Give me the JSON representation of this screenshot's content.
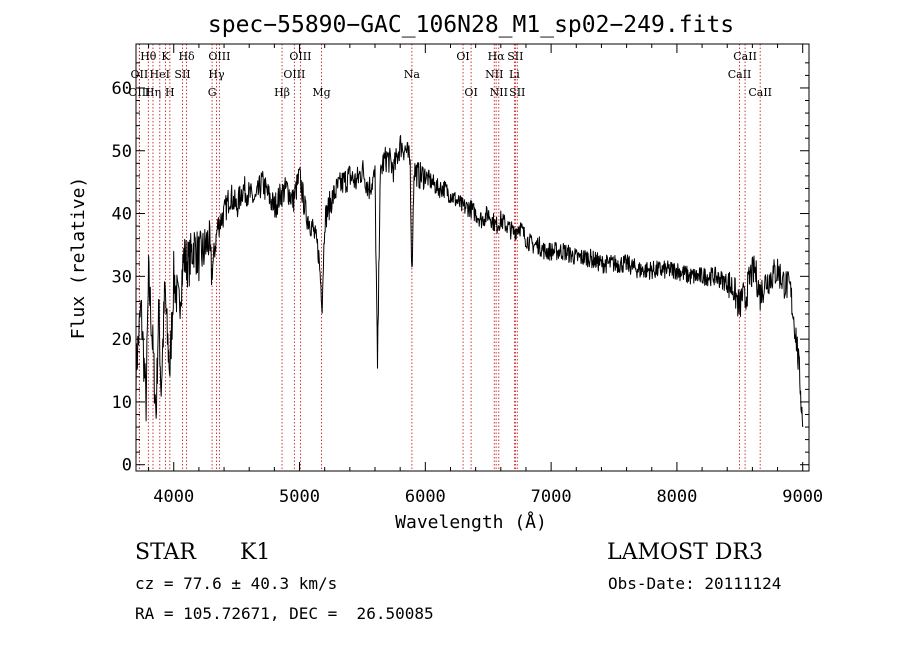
{
  "chart_data": {
    "type": "line",
    "title": "spec−55890−GAC_106N28_M1_sp02−249.fits",
    "xlabel": "Wavelength (Å)",
    "ylabel": "Flux (relative)",
    "xlim": [
      3700,
      9050
    ],
    "ylim": [
      -1,
      67
    ],
    "xticks": [
      4000,
      5000,
      6000,
      7000,
      8000,
      9000
    ],
    "xtick_labels": [
      "4000",
      "5000",
      "6000",
      "7000",
      "8000",
      "9000"
    ],
    "yticks": [
      0,
      10,
      20,
      30,
      40,
      50,
      60
    ],
    "ytick_labels": [
      "0",
      "10",
      "20",
      "30",
      "40",
      "50",
      "60"
    ],
    "grid": false,
    "series": [
      {
        "name": "spectrum",
        "x": [
          3700,
          3740,
          3780,
          3800,
          3830,
          3860,
          3880,
          3900,
          3930,
          3950,
          3970,
          4000,
          4040,
          4080,
          4120,
          4160,
          4200,
          4240,
          4280,
          4300,
          4330,
          4350,
          4400,
          4450,
          4500,
          4550,
          4600,
          4650,
          4700,
          4750,
          4800,
          4850,
          4900,
          4950,
          5000,
          5050,
          5100,
          5150,
          5180,
          5200,
          5250,
          5300,
          5350,
          5400,
          5450,
          5500,
          5550,
          5600,
          5620,
          5640,
          5660,
          5700,
          5750,
          5800,
          5850,
          5880,
          5893,
          5910,
          5950,
          6000,
          6050,
          6100,
          6150,
          6200,
          6250,
          6300,
          6350,
          6400,
          6450,
          6500,
          6563,
          6600,
          6650,
          6700,
          6750,
          6800,
          6850,
          6900,
          6950,
          7000,
          7100,
          7200,
          7300,
          7400,
          7500,
          7600,
          7700,
          7800,
          7900,
          8000,
          8100,
          8200,
          8300,
          8400,
          8450,
          8498,
          8520,
          8542,
          8580,
          8620,
          8662,
          8700,
          8750,
          8800,
          8850,
          8900,
          8950,
          8980,
          9000
        ],
        "values": [
          15,
          25,
          10,
          30,
          20,
          8,
          25,
          12,
          28,
          20,
          15,
          30,
          25,
          33,
          32,
          35,
          33,
          34,
          36,
          30,
          35,
          38,
          40,
          43,
          41,
          44,
          43,
          42,
          45,
          43,
          41,
          43,
          44,
          42,
          46,
          40,
          38,
          34,
          26,
          39,
          42,
          44,
          45,
          46,
          45,
          47,
          44,
          46,
          15,
          45,
          48,
          49,
          47,
          51,
          50,
          48,
          30,
          47,
          46,
          46,
          45,
          44,
          44,
          43,
          42,
          41,
          41,
          40,
          39,
          40,
          38,
          39,
          38,
          37,
          38,
          36,
          35,
          35,
          34,
          34,
          34,
          33,
          33,
          32,
          32,
          32,
          31,
          31,
          31,
          31,
          30,
          30,
          30,
          29,
          28,
          25,
          27,
          26,
          30,
          31,
          27,
          29,
          30,
          31,
          29,
          28,
          20,
          13,
          6
        ]
      }
    ],
    "line_markers": [
      {
        "label": "Hθ",
        "x": 3798,
        "row": 0
      },
      {
        "label": "OII",
        "x": 3727,
        "row": 1
      },
      {
        "label": "OIII",
        "x": 3727,
        "row": 2
      },
      {
        "label": "K",
        "x": 3934,
        "row": 0
      },
      {
        "label": "HeI",
        "x": 3889,
        "row": 1
      },
      {
        "label": "Hη",
        "x": 3835,
        "row": 2
      },
      {
        "label": "Hδ",
        "x": 4102,
        "row": 0
      },
      {
        "label": "SII",
        "x": 4070,
        "row": 1
      },
      {
        "label": "H",
        "x": 3969,
        "row": 2
      },
      {
        "label": "OIII",
        "x": 4363,
        "row": 0
      },
      {
        "label": "Hγ",
        "x": 4340,
        "row": 1
      },
      {
        "label": "G",
        "x": 4305,
        "row": 2
      },
      {
        "label": "Hβ",
        "x": 4861,
        "row": 2
      },
      {
        "label": "OIII",
        "x": 5007,
        "row": 0
      },
      {
        "label": "OIII",
        "x": 4959,
        "row": 1
      },
      {
        "label": "Mg",
        "x": 5175,
        "row": 2
      },
      {
        "label": "Na",
        "x": 5893,
        "row": 1
      },
      {
        "label": "OI",
        "x": 6300,
        "row": 0
      },
      {
        "label": "OI",
        "x": 6364,
        "row": 2
      },
      {
        "label": "Hα",
        "x": 6563,
        "row": 0
      },
      {
        "label": "NII",
        "x": 6548,
        "row": 1
      },
      {
        "label": "NII",
        "x": 6584,
        "row": 2
      },
      {
        "label": "SII",
        "x": 6716,
        "row": 0
      },
      {
        "label": "Li",
        "x": 6708,
        "row": 1
      },
      {
        "label": "SII",
        "x": 6731,
        "row": 2
      },
      {
        "label": "CaII",
        "x": 8542,
        "row": 0
      },
      {
        "label": "CaII",
        "x": 8498,
        "row": 1
      },
      {
        "label": "CaII",
        "x": 8662,
        "row": 2
      }
    ]
  },
  "info": {
    "object_class": "STAR",
    "subclass": "K1",
    "survey": "LAMOST DR3",
    "cz": "cz = 77.6 ± 40.3 km/s",
    "obs_date": "Obs-Date: 20111124",
    "coords": "RA = 105.72671, DEC =  26.50085"
  },
  "colors": {
    "axis": "#000000",
    "spectrum": "#000000",
    "marker_line": "#cc2222",
    "background": "#ffffff"
  }
}
